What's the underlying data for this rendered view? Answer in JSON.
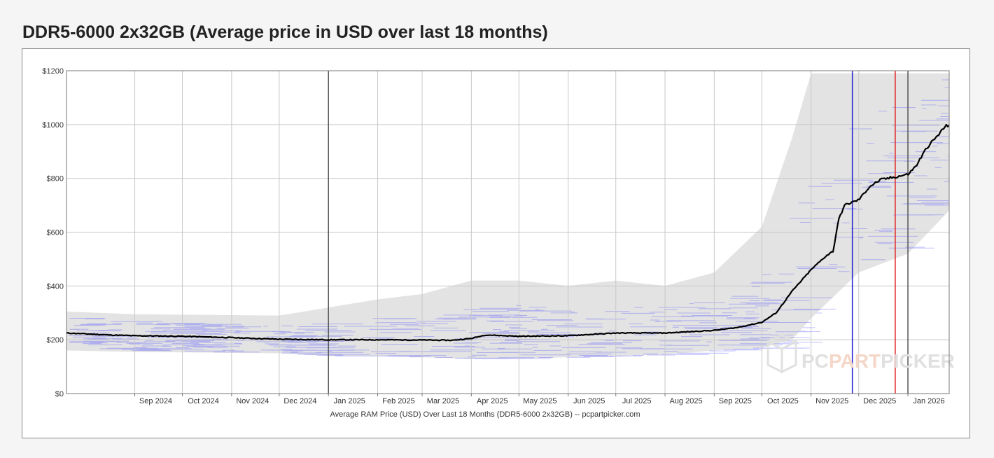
{
  "page": {
    "title": "DDR5-6000 2x32GB (Average price in USD over last 18 months)"
  },
  "colors": {
    "line": "#000000",
    "band": "#e3e3e3",
    "listings": "#5c5cff",
    "marker_blue": "#2222cc",
    "marker_red": "#e02020",
    "marker_dark": "#555555",
    "grid": "#c8c8c8",
    "watermark_gray": "#e0e0e0",
    "watermark_accent": "#f4d7c8"
  },
  "watermark": {
    "prefix": "PC",
    "accent": "PART",
    "suffix": "PICKER"
  },
  "chart_data": {
    "type": "line",
    "title": "DDR5-6000 2x32GB (Average price in USD over last 18 months)",
    "xlabel": "Average RAM Price (USD) Over Last 18 Months (DDR5-6000 2x32GB) -- pcpartpicker.com",
    "ylabel": "",
    "x_range": [
      "2024-07-20",
      "2026-01-27"
    ],
    "ylim": [
      0,
      1200
    ],
    "y_ticks": [
      0,
      200,
      400,
      600,
      800,
      1000,
      1200
    ],
    "y_tick_labels": [
      "$0",
      "$200",
      "$400",
      "$600",
      "$800",
      "$1000",
      "$1200"
    ],
    "x_ticks": [
      {
        "date": "2024-09-01",
        "label": "Sep 2024"
      },
      {
        "date": "2024-10-01",
        "label": "Oct 2024"
      },
      {
        "date": "2024-11-01",
        "label": "Nov 2024"
      },
      {
        "date": "2024-12-01",
        "label": "Dec 2024"
      },
      {
        "date": "2025-01-01",
        "label": "Jan 2025"
      },
      {
        "date": "2025-02-01",
        "label": "Feb 2025"
      },
      {
        "date": "2025-03-01",
        "label": "Mar 2025"
      },
      {
        "date": "2025-04-01",
        "label": "Apr 2025"
      },
      {
        "date": "2025-05-01",
        "label": "May 2025"
      },
      {
        "date": "2025-06-01",
        "label": "Jun 2025"
      },
      {
        "date": "2025-07-01",
        "label": "Jul 2025"
      },
      {
        "date": "2025-08-01",
        "label": "Aug 2025"
      },
      {
        "date": "2025-09-01",
        "label": "Sep 2025"
      },
      {
        "date": "2025-10-01",
        "label": "Oct 2025"
      },
      {
        "date": "2025-11-01",
        "label": "Nov 2025"
      },
      {
        "date": "2025-12-01",
        "label": "Dec 2025"
      },
      {
        "date": "2026-01-01",
        "label": "Jan 2026"
      }
    ],
    "grid": true,
    "legend": "none",
    "markers": [
      {
        "date": "2025-01-01",
        "color": "#555555"
      },
      {
        "date": "2025-11-27",
        "color": "#2222cc"
      },
      {
        "date": "2025-12-24",
        "color": "#e02020"
      },
      {
        "date": "2026-01-01",
        "color": "#555555"
      }
    ],
    "series": [
      {
        "values": [
          {
            "x": "2024-07-20",
            "y": 225
          },
          {
            "x": "2024-08-01",
            "y": 222
          },
          {
            "x": "2024-08-15",
            "y": 218
          },
          {
            "x": "2024-09-01",
            "y": 215
          },
          {
            "x": "2024-10-01",
            "y": 213
          },
          {
            "x": "2024-11-01",
            "y": 208
          },
          {
            "x": "2024-12-01",
            "y": 202
          },
          {
            "x": "2025-01-01",
            "y": 200
          },
          {
            "x": "2025-02-01",
            "y": 200
          },
          {
            "x": "2025-03-01",
            "y": 199
          },
          {
            "x": "2025-03-20",
            "y": 198
          },
          {
            "x": "2025-04-01",
            "y": 205
          },
          {
            "x": "2025-04-10",
            "y": 218
          },
          {
            "x": "2025-05-01",
            "y": 213
          },
          {
            "x": "2025-06-01",
            "y": 215
          },
          {
            "x": "2025-07-01",
            "y": 225
          },
          {
            "x": "2025-08-01",
            "y": 225
          },
          {
            "x": "2025-09-01",
            "y": 235
          },
          {
            "x": "2025-09-15",
            "y": 245
          },
          {
            "x": "2025-10-01",
            "y": 265
          },
          {
            "x": "2025-10-10",
            "y": 300
          },
          {
            "x": "2025-10-20",
            "y": 380
          },
          {
            "x": "2025-11-01",
            "y": 460
          },
          {
            "x": "2025-11-10",
            "y": 510
          },
          {
            "x": "2025-11-15",
            "y": 530
          },
          {
            "x": "2025-11-18",
            "y": 640
          },
          {
            "x": "2025-11-22",
            "y": 700
          },
          {
            "x": "2025-12-01",
            "y": 720
          },
          {
            "x": "2025-12-08",
            "y": 770
          },
          {
            "x": "2025-12-15",
            "y": 795
          },
          {
            "x": "2025-12-24",
            "y": 805
          },
          {
            "x": "2026-01-01",
            "y": 815
          },
          {
            "x": "2026-01-06",
            "y": 845
          },
          {
            "x": "2026-01-13",
            "y": 915
          },
          {
            "x": "2026-01-20",
            "y": 960
          },
          {
            "x": "2026-01-24",
            "y": 990
          },
          {
            "x": "2026-01-27",
            "y": 1000
          }
        ]
      }
    ],
    "band": [
      {
        "x": "2024-07-20",
        "lo": 160,
        "hi": 305
      },
      {
        "x": "2024-09-01",
        "lo": 155,
        "hi": 295
      },
      {
        "x": "2024-12-01",
        "lo": 150,
        "hi": 290
      },
      {
        "x": "2025-01-01",
        "lo": 140,
        "hi": 320
      },
      {
        "x": "2025-02-01",
        "lo": 140,
        "hi": 350
      },
      {
        "x": "2025-03-01",
        "lo": 135,
        "hi": 370
      },
      {
        "x": "2025-04-01",
        "lo": 130,
        "hi": 420
      },
      {
        "x": "2025-05-01",
        "lo": 130,
        "hi": 420
      },
      {
        "x": "2025-06-01",
        "lo": 135,
        "hi": 400
      },
      {
        "x": "2025-07-01",
        "lo": 140,
        "hi": 420
      },
      {
        "x": "2025-08-01",
        "lo": 145,
        "hi": 400
      },
      {
        "x": "2025-09-01",
        "lo": 160,
        "hi": 450
      },
      {
        "x": "2025-10-01",
        "lo": 170,
        "hi": 620
      },
      {
        "x": "2025-10-20",
        "lo": 200,
        "hi": 950
      },
      {
        "x": "2025-11-01",
        "lo": 280,
        "hi": 1190
      },
      {
        "x": "2025-12-01",
        "lo": 450,
        "hi": 1190
      },
      {
        "x": "2026-01-01",
        "lo": 520,
        "hi": 1190
      },
      {
        "x": "2026-01-27",
        "lo": 680,
        "hi": 1190
      }
    ]
  }
}
